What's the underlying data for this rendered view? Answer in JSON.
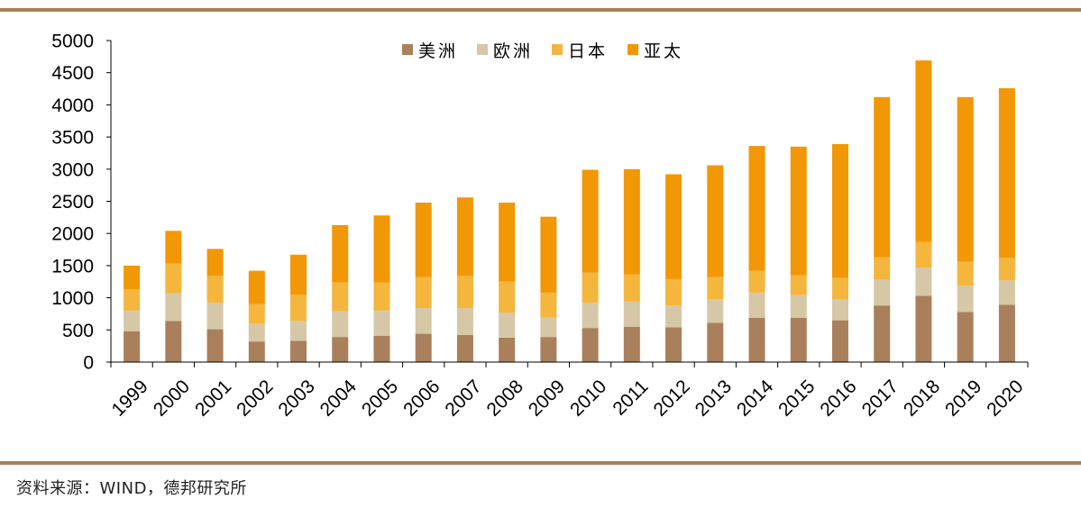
{
  "source": "资料来源：WIND，德邦研究所",
  "chart_data": {
    "type": "bar",
    "stacked": true,
    "categories": [
      "1999",
      "2000",
      "2001",
      "2002",
      "2003",
      "2004",
      "2005",
      "2006",
      "2007",
      "2008",
      "2009",
      "2010",
      "2011",
      "2012",
      "2013",
      "2014",
      "2015",
      "2016",
      "2017",
      "2018",
      "2019",
      "2020"
    ],
    "series": [
      {
        "name": "美洲",
        "color": "#a9805b",
        "values": [
          480,
          640,
          510,
          320,
          330,
          390,
          410,
          440,
          420,
          380,
          390,
          530,
          550,
          540,
          610,
          690,
          690,
          650,
          880,
          1030,
          780,
          890
        ]
      },
      {
        "name": "欧洲",
        "color": "#d6c7a7",
        "values": [
          320,
          430,
          410,
          270,
          310,
          400,
          390,
          400,
          420,
          390,
          300,
          390,
          390,
          340,
          370,
          390,
          350,
          330,
          400,
          440,
          410,
          380
        ]
      },
      {
        "name": "日本",
        "color": "#f5b63e",
        "values": [
          330,
          460,
          420,
          310,
          410,
          450,
          440,
          480,
          500,
          480,
          390,
          470,
          420,
          410,
          340,
          340,
          310,
          330,
          350,
          400,
          370,
          350
        ]
      },
      {
        "name": "亚太",
        "color": "#f29705",
        "values": [
          370,
          510,
          420,
          520,
          620,
          890,
          1040,
          1160,
          1220,
          1230,
          1180,
          1600,
          1640,
          1630,
          1740,
          1940,
          2000,
          2080,
          2490,
          2820,
          2560,
          2640
        ]
      }
    ],
    "title": "",
    "xlabel": "",
    "ylabel": "",
    "ylim": [
      0,
      5000
    ],
    "yticks": [
      "0",
      "500",
      "1000",
      "1500",
      "2000",
      "2500",
      "3000",
      "3500",
      "4000",
      "4500",
      "5000"
    ],
    "legend_position": "top-center",
    "grid": false
  }
}
